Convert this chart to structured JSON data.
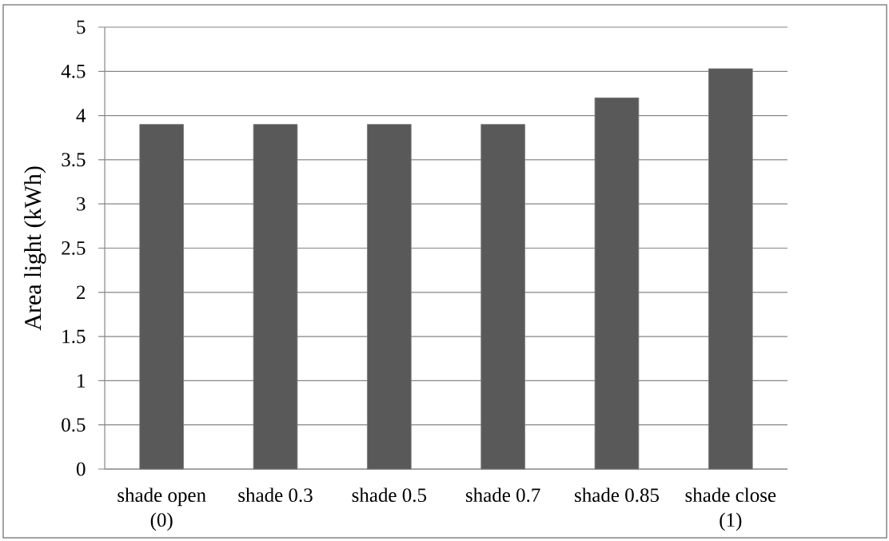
{
  "chart_data": {
    "type": "bar",
    "ylabel": "Area light (kWh)",
    "categories": [
      "shade open (0)",
      "shade 0.3",
      "shade 0.5",
      "shade 0.7",
      "shade 0.85",
      "shade close (1)"
    ],
    "values": [
      3.9,
      3.9,
      3.9,
      3.9,
      4.2,
      4.53
    ],
    "color": "#595959",
    "ylim": [
      0,
      5
    ],
    "yticks": [
      0,
      0.5,
      1,
      1.5,
      2,
      2.5,
      3,
      3.5,
      4,
      4.5,
      5
    ],
    "grid": "y"
  }
}
